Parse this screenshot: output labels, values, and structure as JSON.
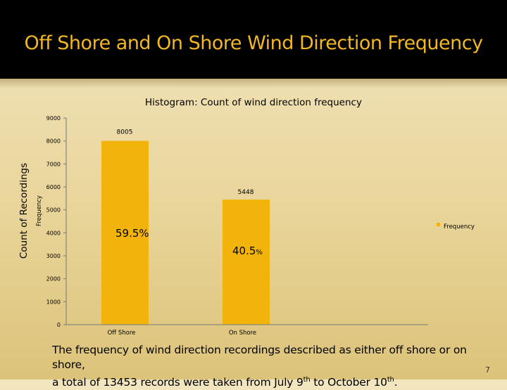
{
  "slide": {
    "title": "Off Shore and On Shore Wind Direction Frequency",
    "page_number": "7",
    "caption": {
      "line1": "The frequency of wind direction recordings described as either off shore or on shore,",
      "line2_a": "a total of 13453 records were taken from July 9",
      "sup1": "th",
      "line2_b": " to October 10",
      "sup2": "th",
      "line2_c": "."
    },
    "outer_ylabel": "Count of Recordings"
  },
  "colors": {
    "bar": "#f2b40a",
    "title": "#f2b823",
    "background": "#ecdcaa"
  },
  "chart_data": {
    "type": "bar",
    "title": "Histogram: Count of wind direction frequency",
    "xlabel": "",
    "ylabel": "Frequency",
    "categories": [
      "Off Shore",
      "On Shore"
    ],
    "series": [
      {
        "name": "Frequency",
        "values": [
          8005,
          5448
        ]
      }
    ],
    "data_labels": [
      "8005",
      "5448"
    ],
    "percent_labels": [
      {
        "value": "59.5",
        "unit": "%"
      },
      {
        "value": "40.5",
        "unit": "%"
      }
    ],
    "ylim": [
      0,
      9000
    ],
    "yticks": [
      0,
      1000,
      2000,
      3000,
      4000,
      5000,
      6000,
      7000,
      8000,
      9000
    ],
    "legend_position": "right",
    "grid": false
  }
}
